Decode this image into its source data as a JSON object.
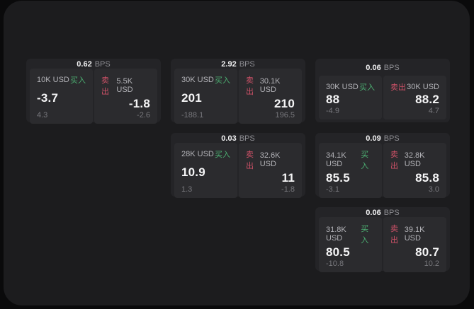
{
  "labels": {
    "buy": "买入",
    "sell": "卖出",
    "bps_suffix": "BPS"
  },
  "colors": {
    "buy_accent": "#4caf72",
    "sell_accent": "#cf5268",
    "window_background": "#1c1c1e",
    "card_background": "#242427",
    "panel_background": "#2b2b2e",
    "primary_text": "#f5f5f6",
    "muted_text": "#8e8e93"
  },
  "cards": [
    {
      "bps": "0.62",
      "buy": {
        "amount": "10K USD",
        "value": "-3.7",
        "change": "4.3"
      },
      "sell": {
        "amount": "5.5K USD",
        "value": "-1.8",
        "change": "-2.6"
      }
    },
    {
      "bps": "2.92",
      "buy": {
        "amount": "30K USD",
        "value": "201",
        "change": "-188.1"
      },
      "sell": {
        "amount": "30.1K USD",
        "value": "210",
        "change": "196.5"
      }
    },
    {
      "bps": "0.06",
      "buy": {
        "amount": "30K USD",
        "value": "88",
        "change": "-4.9"
      },
      "sell": {
        "amount": "30K USD",
        "value": "88.2",
        "change": "4.7"
      }
    },
    {
      "bps": "0.03",
      "buy": {
        "amount": "28K USD",
        "value": "10.9",
        "change": "1.3"
      },
      "sell": {
        "amount": "32.6K USD",
        "value": "11",
        "change": "-1.8"
      }
    },
    {
      "bps": "0.09",
      "buy": {
        "amount": "34.1K USD",
        "value": "85.5",
        "change": "-3.1"
      },
      "sell": {
        "amount": "32.8K USD",
        "value": "85.8",
        "change": "3.0"
      }
    },
    {
      "bps": "0.06",
      "buy": {
        "amount": "31.8K USD",
        "value": "80.5",
        "change": "-10.8"
      },
      "sell": {
        "amount": "39.1K USD",
        "value": "80.7",
        "change": "10.2"
      }
    }
  ]
}
